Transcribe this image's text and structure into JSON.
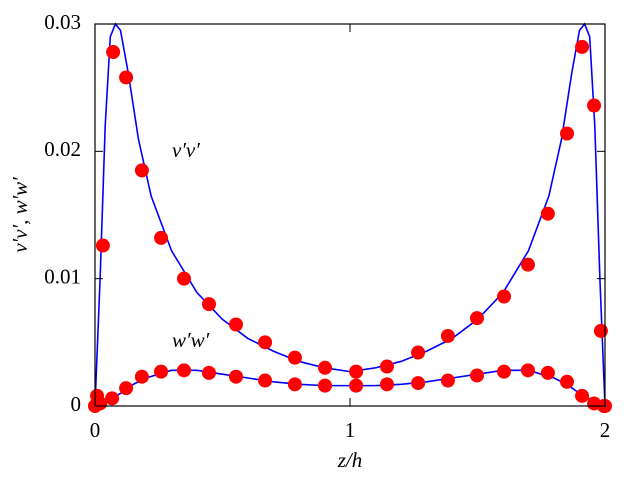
{
  "chart_data": {
    "type": "line",
    "xlabel": "z/h",
    "ylabel": "v′v′, w′w′",
    "annotations": [
      "v′v′",
      "w′w′"
    ],
    "xlim": [
      0,
      2
    ],
    "ylim": [
      0,
      0.03
    ],
    "xticks": [
      0,
      1,
      2
    ],
    "yticks": [
      0,
      0.01,
      0.02,
      0.03
    ],
    "series": [
      {
        "mode": "line",
        "color": "#0000ff",
        "x": [
          0,
          0.02,
          0.04,
          0.06,
          0.08,
          0.1,
          0.13,
          0.17,
          0.22,
          0.3,
          0.4,
          0.5,
          0.6,
          0.7,
          0.8,
          0.9,
          1.0,
          1.1,
          1.2,
          1.3,
          1.4,
          1.5,
          1.6,
          1.7,
          1.78,
          1.83,
          1.87,
          1.9,
          1.92,
          1.94,
          1.96,
          1.98,
          2
        ],
        "values": [
          0,
          0.01,
          0.022,
          0.029,
          0.03,
          0.0295,
          0.0262,
          0.021,
          0.0165,
          0.0122,
          0.0089,
          0.0068,
          0.0053,
          0.0043,
          0.0035,
          0.003,
          0.0027,
          0.003,
          0.0035,
          0.0043,
          0.0053,
          0.0068,
          0.0089,
          0.0122,
          0.0165,
          0.021,
          0.0262,
          0.0295,
          0.03,
          0.029,
          0.022,
          0.01,
          0
        ]
      },
      {
        "mode": "line",
        "color": "#0000ff",
        "x": [
          0,
          0.02,
          0.05,
          0.1,
          0.15,
          0.2,
          0.3,
          0.4,
          0.5,
          0.6,
          0.7,
          0.8,
          0.9,
          1.0,
          1.1,
          1.2,
          1.3,
          1.4,
          1.5,
          1.6,
          1.7,
          1.8,
          1.85,
          1.9,
          1.95,
          1.98,
          2
        ],
        "values": [
          0,
          0.0001,
          0.0004,
          0.001,
          0.0017,
          0.0022,
          0.0028,
          0.0028,
          0.0025,
          0.0022,
          0.0019,
          0.0017,
          0.0016,
          0.0016,
          0.0016,
          0.0017,
          0.0019,
          0.0022,
          0.0025,
          0.0028,
          0.0028,
          0.0022,
          0.0017,
          0.001,
          0.0004,
          0.0001,
          0
        ]
      },
      {
        "mode": "markers",
        "color": "#ff0000",
        "x": [
          0.008,
          0.031,
          0.071,
          0.122,
          0.184,
          0.259,
          0.349,
          0.447,
          0.553,
          0.667,
          0.784,
          0.902,
          1.024,
          1.145,
          1.267,
          1.384,
          1.498,
          1.604,
          1.698,
          1.776,
          1.851,
          1.91,
          1.957,
          1.984,
          1.996
        ],
        "values": [
          0.0008,
          0.0126,
          0.0278,
          0.0258,
          0.0185,
          0.0132,
          0.01,
          0.008,
          0.0064,
          0.005,
          0.0038,
          0.003,
          0.0027,
          0.0031,
          0.0042,
          0.0055,
          0.0069,
          0.0086,
          0.0111,
          0.0151,
          0.0214,
          0.0282,
          0.0236,
          0.0059,
          0
        ]
      },
      {
        "mode": "markers",
        "color": "#ff0000",
        "x": [
          0,
          0.02,
          0.067,
          0.122,
          0.184,
          0.259,
          0.349,
          0.447,
          0.553,
          0.667,
          0.784,
          0.902,
          1.024,
          1.145,
          1.267,
          1.384,
          1.498,
          1.604,
          1.698,
          1.776,
          1.851,
          1.91,
          1.957,
          2
        ],
        "values": [
          0,
          0.0002,
          0.0006,
          0.0014,
          0.0023,
          0.0027,
          0.0028,
          0.0026,
          0.0023,
          0.002,
          0.0017,
          0.0016,
          0.0016,
          0.0017,
          0.0018,
          0.002,
          0.0024,
          0.0027,
          0.0028,
          0.0026,
          0.0019,
          0.0008,
          0.0002,
          0
        ]
      }
    ]
  }
}
